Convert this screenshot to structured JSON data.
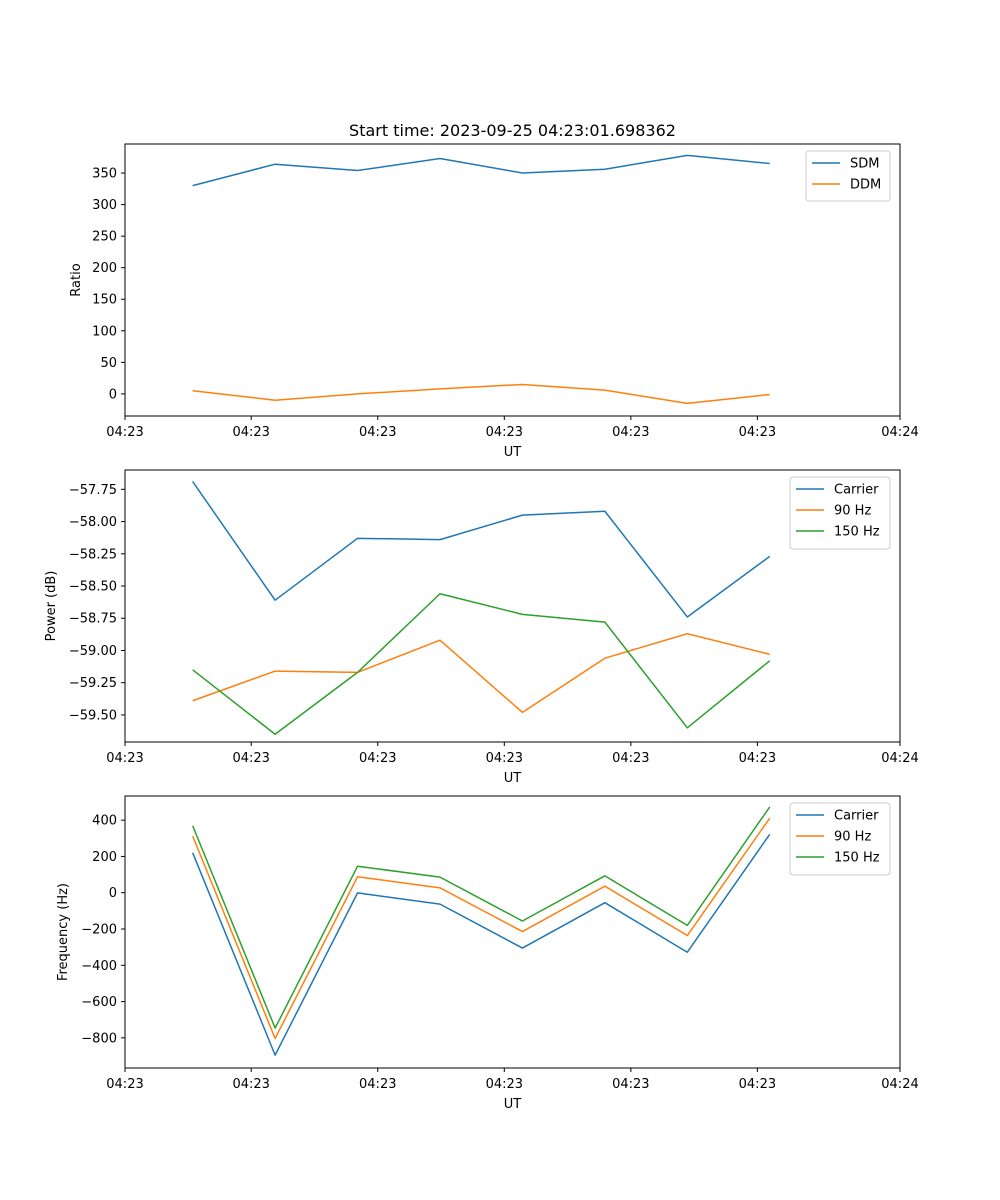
{
  "title": "Start time: 2023-09-25 04:23:01.698362",
  "colors": {
    "blue": "#1f77b4",
    "orange": "#ff7f0e",
    "green": "#2ca02c"
  },
  "chart_data": [
    {
      "type": "line",
      "title": "Start time: 2023-09-25 04:23:01.698362",
      "xlabel": "UT",
      "ylabel": "Ratio",
      "x": [
        1,
        2,
        3,
        4,
        5,
        6,
        7,
        8
      ],
      "xlim": [
        0.179,
        9.58
      ],
      "xticks": [
        0.179,
        1.71,
        3.245,
        4.78,
        6.315,
        7.85,
        9.58
      ],
      "xtick_labels": [
        "04:23",
        "04:23",
        "04:23",
        "04:23",
        "04:23",
        "04:23",
        "04:24"
      ],
      "ylim": [
        -35,
        396
      ],
      "yticks": [
        0,
        50,
        100,
        150,
        200,
        250,
        300,
        350
      ],
      "ytick_labels": [
        "0",
        "50",
        "100",
        "150",
        "200",
        "250",
        "300",
        "350"
      ],
      "legend": "top-right",
      "series": [
        {
          "name": "SDM",
          "color": "#1f77b4",
          "values": [
            330,
            364,
            354,
            373,
            350,
            356,
            378,
            365
          ]
        },
        {
          "name": "DDM",
          "color": "#ff7f0e",
          "values": [
            5,
            -10,
            0,
            8,
            15,
            6,
            -15,
            -1
          ]
        }
      ]
    },
    {
      "type": "line",
      "xlabel": "UT",
      "ylabel": "Power (dB)",
      "x": [
        1,
        2,
        3,
        4,
        5,
        6,
        7,
        8
      ],
      "xlim": [
        0.179,
        9.58
      ],
      "xticks": [
        0.179,
        1.71,
        3.245,
        4.78,
        6.315,
        7.85,
        9.58
      ],
      "xtick_labels": [
        "04:23",
        "04:23",
        "04:23",
        "04:23",
        "04:23",
        "04:23",
        "04:24"
      ],
      "ylim": [
        -59.71,
        -57.6
      ],
      "yticks": [
        -59.5,
        -59.25,
        -59.0,
        -58.75,
        -58.5,
        -58.25,
        -58.0,
        -57.75
      ],
      "ytick_labels": [
        "−59.50",
        "−59.25",
        "−59.00",
        "−58.75",
        "−58.50",
        "−58.25",
        "−58.00",
        "−57.75"
      ],
      "legend": "top-right",
      "series": [
        {
          "name": "Carrier",
          "color": "#1f77b4",
          "values": [
            -57.69,
            -58.61,
            -58.13,
            -58.14,
            -57.95,
            -57.92,
            -58.74,
            -58.27
          ]
        },
        {
          "name": "90 Hz",
          "color": "#ff7f0e",
          "values": [
            -59.39,
            -59.16,
            -59.17,
            -58.92,
            -59.48,
            -59.06,
            -58.87,
            -59.03
          ]
        },
        {
          "name": "150 Hz",
          "color": "#2ca02c",
          "values": [
            -59.15,
            -59.65,
            -59.17,
            -58.56,
            -58.72,
            -58.78,
            -59.6,
            -59.08
          ]
        }
      ]
    },
    {
      "type": "line",
      "xlabel": "UT",
      "ylabel": "Frequency (Hz)",
      "x": [
        1,
        2,
        3,
        4,
        5,
        6,
        7,
        8
      ],
      "xlim": [
        0.179,
        9.58
      ],
      "xticks": [
        0.179,
        1.71,
        3.245,
        4.78,
        6.315,
        7.85,
        9.58
      ],
      "xtick_labels": [
        "04:23",
        "04:23",
        "04:23",
        "04:23",
        "04:23",
        "04:23",
        "04:24"
      ],
      "ylim": [
        -966,
        533
      ],
      "yticks": [
        -800,
        -600,
        -400,
        -200,
        0,
        200,
        400
      ],
      "ytick_labels": [
        "−800",
        "−600",
        "−400",
        "−200",
        "0",
        "200",
        "400"
      ],
      "legend": "top-right",
      "series": [
        {
          "name": "Carrier",
          "color": "#1f77b4",
          "values": [
            220,
            -895,
            -1,
            -63,
            -305,
            -55,
            -328,
            322
          ]
        },
        {
          "name": "90 Hz",
          "color": "#ff7f0e",
          "values": [
            312,
            -803,
            88,
            27,
            -214,
            36,
            -236,
            411
          ]
        },
        {
          "name": "150 Hz",
          "color": "#2ca02c",
          "values": [
            369,
            -746,
            146,
            86,
            -156,
            93,
            -180,
            473
          ]
        }
      ]
    }
  ]
}
